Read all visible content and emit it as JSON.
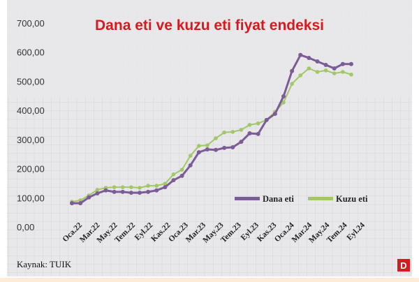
{
  "chart_data": {
    "type": "line",
    "title": "Dana eti ve kuzu eti fiyat endeksi",
    "xlabel": "",
    "ylabel": "",
    "ylim": [
      0,
      700
    ],
    "y_ticks": [
      "0,00",
      "100,00",
      "200,00",
      "300,00",
      "400,00",
      "500,00",
      "600,00",
      "700,00"
    ],
    "x_tick_labels": [
      "Oca.22",
      "Mar.22",
      "May.22",
      "Tem.22",
      "Eyl.22",
      "Kas.22",
      "Oca.23",
      "Mar.23",
      "May.23",
      "Tem.23",
      "Eyl.23",
      "Kas.23",
      "Oca.24",
      "Mar.24",
      "May.24",
      "Tem.24",
      "Eyl.24"
    ],
    "grid": true,
    "legend_placement": "bottom-right",
    "series": [
      {
        "name": "Dana eti",
        "color": "#7b5c97",
        "values": [
          86,
          86,
          106,
          120,
          130,
          125,
          125,
          122,
          122,
          125,
          130,
          141,
          165,
          180,
          216,
          261,
          271,
          269,
          276,
          278,
          297,
          326,
          324,
          372,
          393,
          453,
          540,
          595,
          585,
          573,
          561,
          549,
          564,
          564
        ]
      },
      {
        "name": "Kuzu eti",
        "color": "#a2c768",
        "values": [
          91,
          96,
          113,
          132,
          139,
          141,
          141,
          141,
          139,
          146,
          146,
          153,
          185,
          201,
          249,
          283,
          285,
          309,
          329,
          331,
          338,
          355,
          360,
          372,
          400,
          432,
          496,
          525,
          549,
          537,
          542,
          532,
          537,
          528
        ]
      }
    ]
  },
  "source": "Kaynak: TUIK",
  "logo": "D"
}
